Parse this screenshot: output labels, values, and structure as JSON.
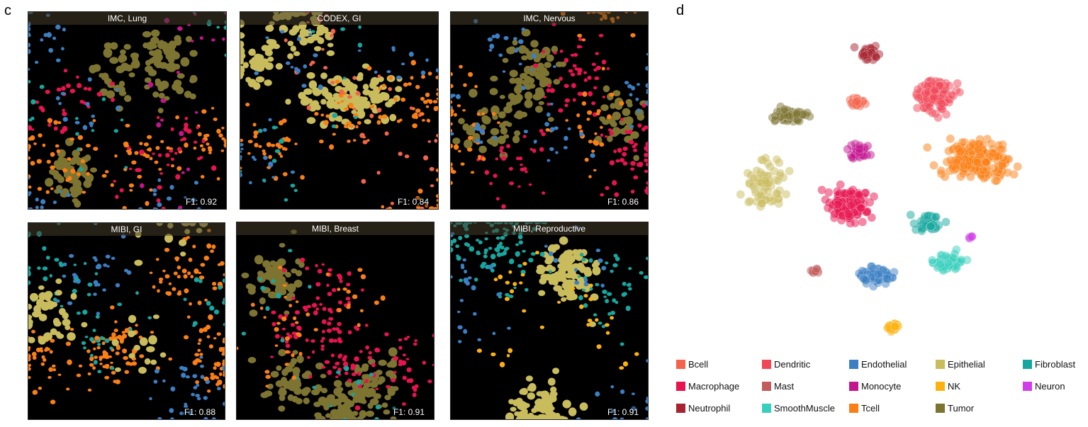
{
  "panel_c_label": "c",
  "panel_d_label": "d",
  "tiles": [
    {
      "title": "IMC, Lung",
      "score": "F1: 0.92",
      "composition": {
        "Tumor": 0.35,
        "Tcell": 0.25,
        "Macrophage": 0.15,
        "Endothelial": 0.15,
        "Monocyte": 0.05,
        "Fibroblast": 0.05
      }
    },
    {
      "title": "CODEX, GI",
      "score": "F1: 0.84",
      "composition": {
        "Epithelial": 0.45,
        "Tcell": 0.3,
        "Bcell": 0.1,
        "Endothelial": 0.1,
        "Fibroblast": 0.05
      }
    },
    {
      "title": "IMC, Nervous",
      "score": "F1: 0.86",
      "composition": {
        "Tumor": 0.35,
        "Macrophage": 0.3,
        "Tcell": 0.2,
        "Endothelial": 0.15
      }
    },
    {
      "title": "MIBI, GI",
      "score": "F1: 0.88",
      "composition": {
        "Tcell": 0.55,
        "Endothelial": 0.15,
        "Fibroblast": 0.15,
        "Epithelial": 0.15
      }
    },
    {
      "title": "MIBI, Breast",
      "score": "F1: 0.91",
      "composition": {
        "Tumor": 0.5,
        "Macrophage": 0.35,
        "Tcell": 0.1,
        "Fibroblast": 0.05
      }
    },
    {
      "title": "MIBI, Reproductive",
      "score": "F1: 0.91",
      "composition": {
        "Epithelial": 0.45,
        "Fibroblast": 0.35,
        "Endothelial": 0.12,
        "NK": 0.08
      }
    }
  ],
  "legend": [
    {
      "label": "Bcell",
      "color": "#f4634c"
    },
    {
      "label": "Dendritic",
      "color": "#f24757"
    },
    {
      "label": "Endothelial",
      "color": "#3b7fc4"
    },
    {
      "label": "Epithelial",
      "color": "#c9bc5d"
    },
    {
      "label": "Fibroblast",
      "color": "#17a7a0"
    },
    {
      "label": "Macrophage",
      "color": "#e8134f"
    },
    {
      "label": "Mast",
      "color": "#c25b5b"
    },
    {
      "label": "Monocyte",
      "color": "#c4158f"
    },
    {
      "label": "NK",
      "color": "#fbb20e"
    },
    {
      "label": "Neuron",
      "color": "#cf3ee8"
    },
    {
      "label": "Neutrophil",
      "color": "#a8232f"
    },
    {
      "label": "SmoothMuscle",
      "color": "#39cfbe"
    },
    {
      "label": "Tcell",
      "color": "#fb7f15"
    },
    {
      "label": "Tumor",
      "color": "#7e7432"
    }
  ],
  "tsne_clusters": [
    {
      "type": "Neutrophil",
      "n": 45
    },
    {
      "type": "Dendritic",
      "n": 110
    },
    {
      "type": "Bcell",
      "n": 25
    },
    {
      "type": "Tumor",
      "n": 60
    },
    {
      "type": "Epithelial",
      "n": 70
    },
    {
      "type": "Monocyte",
      "n": 45
    },
    {
      "type": "Tcell",
      "n": 220
    },
    {
      "type": "Macrophage",
      "n": 170
    },
    {
      "type": "Fibroblast",
      "n": 55
    },
    {
      "type": "SmoothMuscle",
      "n": 55
    },
    {
      "type": "Endothelial",
      "n": 90
    },
    {
      "type": "Mast",
      "n": 12
    },
    {
      "type": "NK",
      "n": 25
    },
    {
      "type": "Neuron",
      "n": 5
    }
  ]
}
